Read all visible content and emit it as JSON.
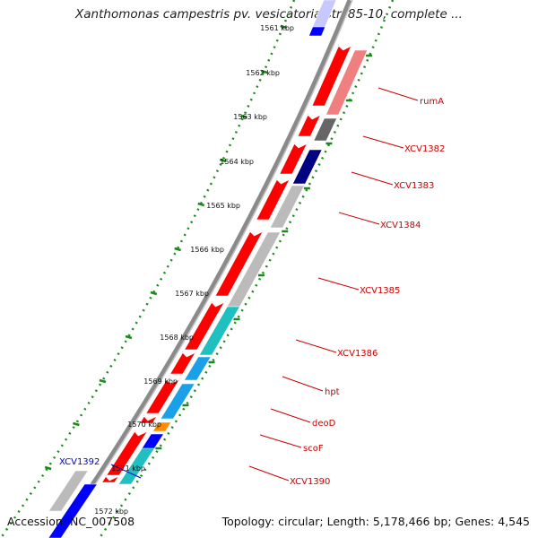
{
  "title": "Xanthomonas campestris pv. vesicatoria str. 85-10, complete ...",
  "accession": "Accession: NC_007508",
  "topology": "Topology: circular; Length: 5,178,466 bp; Genes: 4,545",
  "colors": {
    "backbone": "#8a8a8a",
    "ruler": "#1a8a1a",
    "gene_label": "#cc0000",
    "highlight_label": "#0000cc",
    "forward_arrow": "#ff0000",
    "cog_grey": "#bbbbbb",
    "cog_pink": "#f08080",
    "cog_darkgrey": "#666666",
    "cog_navy": "#000080",
    "cog_teal": "#20c0c0",
    "cog_skyblue": "#1aa0e8",
    "cog_orange": "#ff8c00",
    "cog_blue": "#0000ff",
    "cog_lavender": "#c8c8ff"
  },
  "kbp_ticks": [
    "1561 kbp",
    "1562 kbp",
    "1563 kbp",
    "1564 kbp",
    "1565 kbp",
    "1566 kbp",
    "1567 kbp",
    "1568 kbp",
    "1569 kbp",
    "1570 kbp",
    "1571 kbp",
    "1572 kbp"
  ],
  "gene_labels": [
    "rumA",
    "XCV1382",
    "XCV1383",
    "XCV1384",
    "XCV1385",
    "XCV1386",
    "hpt",
    "deoD",
    "scoF",
    "XCV1390"
  ],
  "highlight_gene": "XCV1392"
}
